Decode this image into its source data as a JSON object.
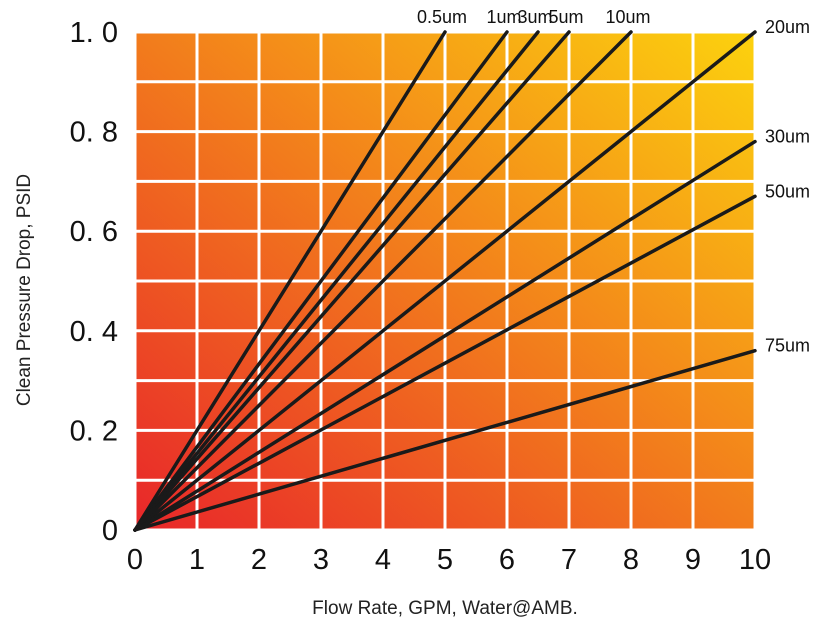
{
  "chart_data": {
    "type": "line",
    "title": "",
    "xlabel": "Flow Rate, GPM, Water@AMB.",
    "ylabel": "Clean Pressure Drop, PSID",
    "xlim": [
      0,
      10
    ],
    "ylim": [
      0,
      1.0
    ],
    "x_ticks": [
      "0",
      "1",
      "2",
      "3",
      "4",
      "5",
      "6",
      "7",
      "8",
      "9",
      "10"
    ],
    "y_ticks": [
      "0",
      "0. 2",
      "0. 4",
      "0. 6",
      "0. 8",
      "1. 0"
    ],
    "grid": true,
    "background_gradient": [
      "#e8262a",
      "#fcd20e"
    ],
    "line_color": "#1a1a1a",
    "series": [
      {
        "name": "0.5um",
        "x": [
          0,
          5.0
        ],
        "y": [
          0,
          1.0
        ]
      },
      {
        "name": "1um",
        "x": [
          0,
          6.0
        ],
        "y": [
          0,
          1.0
        ]
      },
      {
        "name": "3um",
        "x": [
          0,
          6.5
        ],
        "y": [
          0,
          1.0
        ]
      },
      {
        "name": "5um",
        "x": [
          0,
          7.0
        ],
        "y": [
          0,
          1.0
        ]
      },
      {
        "name": "10um",
        "x": [
          0,
          8.0
        ],
        "y": [
          0,
          1.0
        ]
      },
      {
        "name": "20um",
        "x": [
          0,
          10.0
        ],
        "y": [
          0,
          1.0
        ]
      },
      {
        "name": "30um",
        "x": [
          0,
          10.0
        ],
        "y": [
          0,
          0.78
        ]
      },
      {
        "name": "50um",
        "x": [
          0,
          10.0
        ],
        "y": [
          0,
          0.67
        ]
      },
      {
        "name": "75um",
        "x": [
          0,
          10.0
        ],
        "y": [
          0,
          0.36
        ]
      }
    ]
  }
}
